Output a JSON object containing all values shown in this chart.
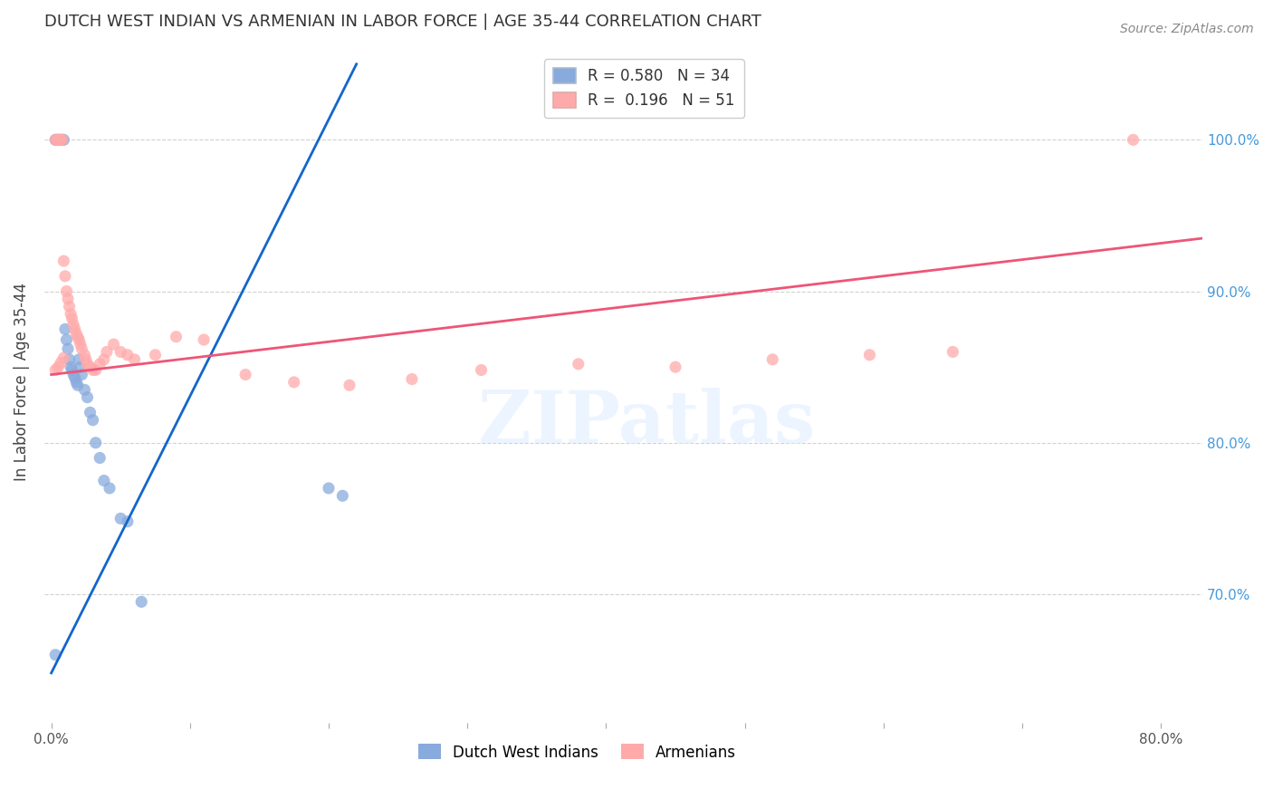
{
  "title": "DUTCH WEST INDIAN VS ARMENIAN IN LABOR FORCE | AGE 35-44 CORRELATION CHART",
  "source": "Source: ZipAtlas.com",
  "ylabel_left": "In Labor Force | Age 35-44",
  "xlim": [
    -0.005,
    0.83
  ],
  "ylim": [
    0.615,
    1.065
  ],
  "blue_R": 0.58,
  "blue_N": 34,
  "pink_R": 0.196,
  "pink_N": 51,
  "blue_color": "#88AADD",
  "pink_color": "#FFAAAA",
  "blue_line_color": "#1166CC",
  "pink_line_color": "#EE5577",
  "legend_blue_label": "Dutch West Indians",
  "legend_pink_label": "Armenians",
  "watermark": "ZIPatlas",
  "blue_x": [
    0.003,
    0.004,
    0.005,
    0.006,
    0.007,
    0.008,
    0.009,
    0.01,
    0.011,
    0.012,
    0.013,
    0.014,
    0.015,
    0.016,
    0.017,
    0.018,
    0.019,
    0.02,
    0.021,
    0.022,
    0.024,
    0.026,
    0.028,
    0.03,
    0.032,
    0.035,
    0.038,
    0.042,
    0.05,
    0.055,
    0.065,
    0.2,
    0.21,
    0.003
  ],
  "blue_y": [
    1.0,
    1.0,
    1.0,
    1.0,
    1.0,
    1.0,
    1.0,
    0.875,
    0.868,
    0.862,
    0.855,
    0.85,
    0.848,
    0.845,
    0.843,
    0.84,
    0.838,
    0.855,
    0.85,
    0.845,
    0.835,
    0.83,
    0.82,
    0.815,
    0.8,
    0.79,
    0.775,
    0.77,
    0.75,
    0.748,
    0.695,
    0.77,
    0.765,
    0.66
  ],
  "pink_x": [
    0.003,
    0.004,
    0.005,
    0.006,
    0.007,
    0.008,
    0.009,
    0.01,
    0.011,
    0.012,
    0.013,
    0.014,
    0.015,
    0.016,
    0.017,
    0.018,
    0.019,
    0.02,
    0.021,
    0.022,
    0.024,
    0.025,
    0.026,
    0.028,
    0.03,
    0.032,
    0.035,
    0.038,
    0.04,
    0.045,
    0.05,
    0.055,
    0.06,
    0.075,
    0.09,
    0.11,
    0.14,
    0.175,
    0.215,
    0.26,
    0.31,
    0.38,
    0.45,
    0.52,
    0.59,
    0.65,
    0.78,
    0.003,
    0.005,
    0.007,
    0.009
  ],
  "pink_y": [
    1.0,
    1.0,
    1.0,
    1.0,
    1.0,
    1.0,
    0.92,
    0.91,
    0.9,
    0.895,
    0.89,
    0.885,
    0.882,
    0.878,
    0.875,
    0.872,
    0.87,
    0.868,
    0.865,
    0.862,
    0.858,
    0.855,
    0.852,
    0.85,
    0.848,
    0.848,
    0.852,
    0.855,
    0.86,
    0.865,
    0.86,
    0.858,
    0.855,
    0.858,
    0.87,
    0.868,
    0.845,
    0.84,
    0.838,
    0.842,
    0.848,
    0.852,
    0.85,
    0.855,
    0.858,
    0.86,
    1.0,
    0.848,
    0.85,
    0.853,
    0.856
  ],
  "blue_line_x": [
    0.0,
    0.22
  ],
  "blue_line_y": [
    0.648,
    1.05
  ],
  "pink_line_x": [
    0.0,
    0.83
  ],
  "pink_line_y": [
    0.845,
    0.935
  ]
}
